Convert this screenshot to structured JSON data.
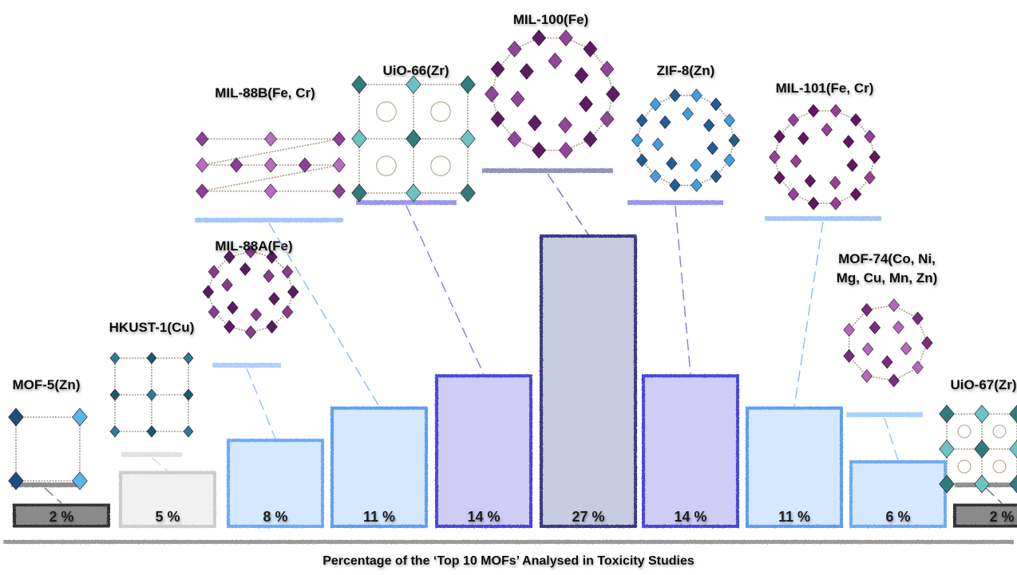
{
  "chart_data": {
    "type": "bar",
    "title": "Percentage of the ‘Top 10 MOFs’ Analysed in Toxicity Studies",
    "ylabel": "",
    "unit": "%",
    "categories": [
      "MOF-5(Zn)",
      "HKUST-1(Cu)",
      "MIL-88A(Fe)",
      "MIL-88B(Fe, Cr)",
      "UiO-66(Zr)",
      "MIL-100(Fe)",
      "ZIF-8(Zn)",
      "MIL-101(Fe, Cr)",
      "MOF-74(Co, Ni, Mg, Cu, Mn, Zn)",
      "UiO-67(Zr)"
    ],
    "values": [
      2,
      5,
      8,
      11,
      14,
      27,
      14,
      11,
      6,
      2
    ],
    "value_labels": [
      "2 %",
      "5 %",
      "8 %",
      "11 %",
      "14 %",
      "27 %",
      "14 %",
      "11 %",
      "6 %",
      "2 %"
    ],
    "category_labels": [
      "MOF-5(Zn)",
      "HKUST-1(Cu)",
      "MIL-88A(Fe)",
      "MIL-88B(Fe, Cr)",
      "UiO-66(Zr)",
      "MIL-100(Fe)",
      "ZIF-8(Zn)",
      "MIL-101(Fe, Cr)",
      "MOF-74(Co, Ni,\nMg, Cu, Mn, Zn)",
      "UiO-67(Zr)"
    ],
    "structure_icons": [
      "mof5-structure-icon",
      "hkust1-structure-icon",
      "mil88a-structure-icon",
      "mil88b-structure-icon",
      "uio66-structure-icon",
      "mil100-structure-icon",
      "zif8-structure-icon",
      "mil101-structure-icon",
      "mof74-structure-icon",
      "uio67-structure-icon"
    ],
    "bar_fill_colors": [
      "#8a8a8a",
      "#f1f1f1",
      "#d5e8ff",
      "#d5e8ff",
      "#cfcdf3",
      "#c8cce0",
      "#cfcdf3",
      "#d5e8ff",
      "#d5e8ff",
      "#8a8a8a"
    ],
    "bar_edge_colors": [
      "#333333",
      "#cccccc",
      "#6aaaf5",
      "#5c9df0",
      "#4c45d8",
      "#3a3a85",
      "#4c45d8",
      "#5c9df0",
      "#6aaaf5",
      "#333333"
    ],
    "ylim": [
      0,
      27
    ],
    "grid": false,
    "legend": "none"
  }
}
